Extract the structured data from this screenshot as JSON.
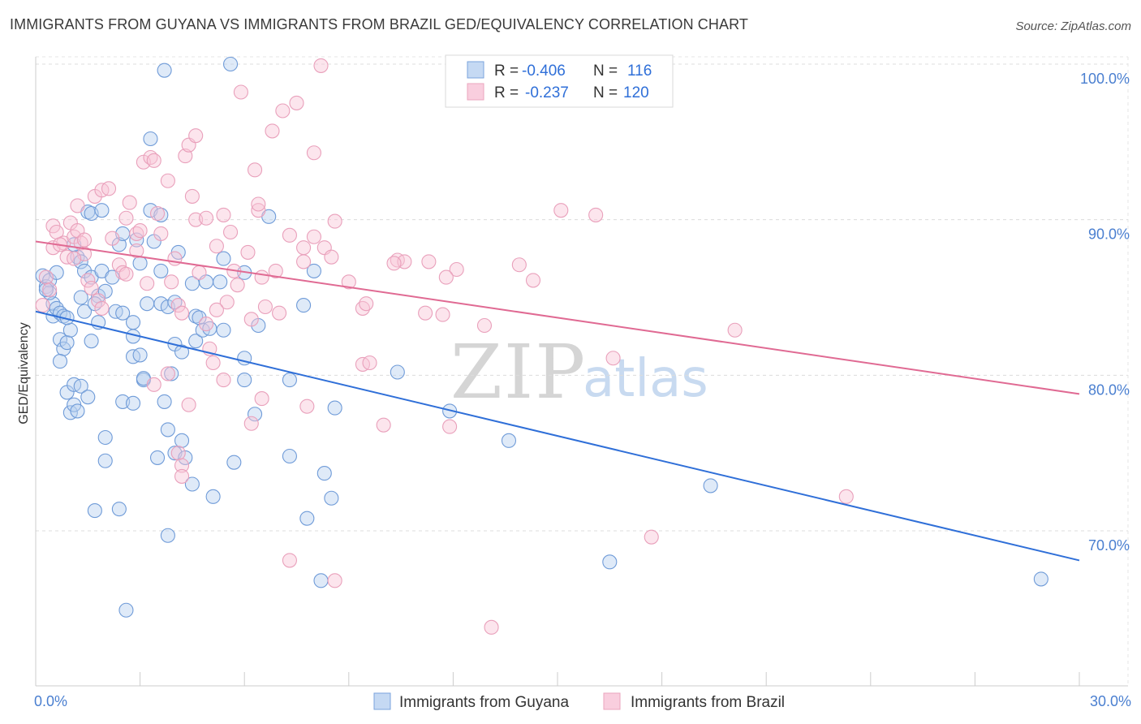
{
  "title": "IMMIGRANTS FROM GUYANA VS IMMIGRANTS FROM BRAZIL GED/EQUIVALENCY CORRELATION CHART",
  "source": "Source: ZipAtlas.com",
  "watermark": {
    "zip": "ZIP",
    "atlas": "atlas"
  },
  "colors": {
    "blue": "#4a7fd0",
    "blue_line": "#2f6fd8",
    "pink": "#e7709a",
    "pink_line": "#e06a93"
  },
  "chart_data": {
    "type": "scatter",
    "title": "IMMIGRANTS FROM GUYANA VS IMMIGRANTS FROM BRAZIL GED/EQUIVALENCY CORRELATION CHART",
    "xlabel": "",
    "ylabel": "GED/Equivalency",
    "xlim": [
      0,
      30
    ],
    "ylim": [
      60,
      101.5
    ],
    "x_tick_labels": [
      {
        "value": 0,
        "label": "0.0%"
      },
      {
        "value": 30,
        "label": "30.0%"
      }
    ],
    "x_minor_ticks": [
      3,
      6,
      9,
      12,
      15,
      18,
      21,
      24,
      27
    ],
    "y_ticks": [
      {
        "value": 70,
        "label": "70.0%"
      },
      {
        "value": 80,
        "label": "80.0%"
      },
      {
        "value": 90,
        "label": "90.0%"
      },
      {
        "value": 100,
        "label": "100.0%"
      }
    ],
    "legend": {
      "entries": [
        {
          "name": "blue",
          "r_label": "R =",
          "r_value": "-0.406",
          "n_label": "N =",
          "n_value": "116"
        },
        {
          "name": "pink",
          "r_label": "R =",
          "r_value": "-0.237",
          "n_label": "N =",
          "n_value": "120"
        }
      ]
    },
    "series": [
      {
        "name": "Immigrants from Guyana",
        "color": "blue",
        "trend": {
          "x": [
            0,
            30
          ],
          "y": [
            84.1,
            68.1
          ]
        },
        "points": [
          [
            0.2,
            86.4
          ],
          [
            0.3,
            85.7
          ],
          [
            0.4,
            86.1
          ],
          [
            0.5,
            84.6
          ],
          [
            0.6,
            86.6
          ],
          [
            0.4,
            85.3
          ],
          [
            0.5,
            83.8
          ],
          [
            0.6,
            84.3
          ],
          [
            0.7,
            84.0
          ],
          [
            0.8,
            83.8
          ],
          [
            0.7,
            82.3
          ],
          [
            0.8,
            81.7
          ],
          [
            0.9,
            82.1
          ],
          [
            0.7,
            80.9
          ],
          [
            1.0,
            82.9
          ],
          [
            0.9,
            78.9
          ],
          [
            1.0,
            77.6
          ],
          [
            1.1,
            78.1
          ],
          [
            1.2,
            77.7
          ],
          [
            1.1,
            79.4
          ],
          [
            1.3,
            79.3
          ],
          [
            1.5,
            78.6
          ],
          [
            0.9,
            83.7
          ],
          [
            1.4,
            84.1
          ],
          [
            1.8,
            83.4
          ],
          [
            1.6,
            82.2
          ],
          [
            1.2,
            87.6
          ],
          [
            1.3,
            87.3
          ],
          [
            1.4,
            86.7
          ],
          [
            1.6,
            86.3
          ],
          [
            1.8,
            85.1
          ],
          [
            1.9,
            86.7
          ],
          [
            2.0,
            85.4
          ],
          [
            1.5,
            90.5
          ],
          [
            1.6,
            90.4
          ],
          [
            1.9,
            90.6
          ],
          [
            2.2,
            86.3
          ],
          [
            2.3,
            84.1
          ],
          [
            2.5,
            84.0
          ],
          [
            2.4,
            88.4
          ],
          [
            2.5,
            89.1
          ],
          [
            2.8,
            82.5
          ],
          [
            2.8,
            81.2
          ],
          [
            3.0,
            81.3
          ],
          [
            3.1,
            79.7
          ],
          [
            3.1,
            79.8
          ],
          [
            2.5,
            78.3
          ],
          [
            2.8,
            78.2
          ],
          [
            2.0,
            76.0
          ],
          [
            2.0,
            74.5
          ],
          [
            1.7,
            71.3
          ],
          [
            2.4,
            71.4
          ],
          [
            2.6,
            64.9
          ],
          [
            3.2,
            84.6
          ],
          [
            3.0,
            87.2
          ],
          [
            3.3,
            90.6
          ],
          [
            3.6,
            90.3
          ],
          [
            3.4,
            88.6
          ],
          [
            3.6,
            86.7
          ],
          [
            3.6,
            84.6
          ],
          [
            3.8,
            84.4
          ],
          [
            4.0,
            84.7
          ],
          [
            4.0,
            82.0
          ],
          [
            4.2,
            81.5
          ],
          [
            3.9,
            80.1
          ],
          [
            3.7,
            78.3
          ],
          [
            3.8,
            76.5
          ],
          [
            4.2,
            75.8
          ],
          [
            3.5,
            74.7
          ],
          [
            4.0,
            75.0
          ],
          [
            4.3,
            74.7
          ],
          [
            4.5,
            73.0
          ],
          [
            3.8,
            69.7
          ],
          [
            4.1,
            87.9
          ],
          [
            4.5,
            85.9
          ],
          [
            4.6,
            83.8
          ],
          [
            4.7,
            83.7
          ],
          [
            4.6,
            82.2
          ],
          [
            4.8,
            82.9
          ],
          [
            4.9,
            86.0
          ],
          [
            5.0,
            83.0
          ],
          [
            5.1,
            72.2
          ],
          [
            5.3,
            86.0
          ],
          [
            5.4,
            87.5
          ],
          [
            5.4,
            82.9
          ],
          [
            5.7,
            74.4
          ],
          [
            6.0,
            86.6
          ],
          [
            6.0,
            81.1
          ],
          [
            6.0,
            79.7
          ],
          [
            6.3,
            77.5
          ],
          [
            6.4,
            83.2
          ],
          [
            6.7,
            90.2
          ],
          [
            7.3,
            79.7
          ],
          [
            7.3,
            74.8
          ],
          [
            7.7,
            84.5
          ],
          [
            7.8,
            70.8
          ],
          [
            8.0,
            86.7
          ],
          [
            8.3,
            73.7
          ],
          [
            8.2,
            66.8
          ],
          [
            8.5,
            72.1
          ],
          [
            8.6,
            77.9
          ],
          [
            10.4,
            80.2
          ],
          [
            11.9,
            77.7
          ],
          [
            13.6,
            75.8
          ],
          [
            16.5,
            68.0
          ],
          [
            19.4,
            72.9
          ],
          [
            28.9,
            66.9
          ],
          [
            5.6,
            100.0
          ],
          [
            3.7,
            99.6
          ],
          [
            3.3,
            95.2
          ],
          [
            1.7,
            84.6
          ],
          [
            2.8,
            83.4
          ],
          [
            1.3,
            85.0
          ],
          [
            0.3,
            85.5
          ],
          [
            1.1,
            88.4
          ],
          [
            2.9,
            88.7
          ]
        ]
      },
      {
        "name": "Immigrants from Brazil",
        "color": "pink",
        "trend": {
          "x": [
            0,
            30
          ],
          "y": [
            88.6,
            78.8
          ]
        },
        "points": [
          [
            0.2,
            84.5
          ],
          [
            0.3,
            86.3
          ],
          [
            0.5,
            88.2
          ],
          [
            0.5,
            89.6
          ],
          [
            0.6,
            89.2
          ],
          [
            0.8,
            88.5
          ],
          [
            0.9,
            87.6
          ],
          [
            1.0,
            89.8
          ],
          [
            1.1,
            88.9
          ],
          [
            1.2,
            89.3
          ],
          [
            1.2,
            90.9
          ],
          [
            1.3,
            88.5
          ],
          [
            1.4,
            87.8
          ],
          [
            1.5,
            86.1
          ],
          [
            1.6,
            85.6
          ],
          [
            1.8,
            84.8
          ],
          [
            1.9,
            84.3
          ],
          [
            1.7,
            91.5
          ],
          [
            1.9,
            91.9
          ],
          [
            2.1,
            92.0
          ],
          [
            2.2,
            88.8
          ],
          [
            2.4,
            87.1
          ],
          [
            2.5,
            86.6
          ],
          [
            2.6,
            90.1
          ],
          [
            2.7,
            91.1
          ],
          [
            2.9,
            89.1
          ],
          [
            3.0,
            89.3
          ],
          [
            3.1,
            93.7
          ],
          [
            3.3,
            94.0
          ],
          [
            3.4,
            93.8
          ],
          [
            3.5,
            90.4
          ],
          [
            3.6,
            89.1
          ],
          [
            3.8,
            92.5
          ],
          [
            3.9,
            86.0
          ],
          [
            4.0,
            87.5
          ],
          [
            4.1,
            84.5
          ],
          [
            4.2,
            84.0
          ],
          [
            4.3,
            94.1
          ],
          [
            4.4,
            94.8
          ],
          [
            4.5,
            91.5
          ],
          [
            4.6,
            90.0
          ],
          [
            4.7,
            86.6
          ],
          [
            4.9,
            83.3
          ],
          [
            5.0,
            81.7
          ],
          [
            5.1,
            80.8
          ],
          [
            5.2,
            88.3
          ],
          [
            5.4,
            90.3
          ],
          [
            5.6,
            89.2
          ],
          [
            5.7,
            86.7
          ],
          [
            5.8,
            85.8
          ],
          [
            5.9,
            98.2
          ],
          [
            6.1,
            87.9
          ],
          [
            6.2,
            83.6
          ],
          [
            6.3,
            93.2
          ],
          [
            6.4,
            90.6
          ],
          [
            6.5,
            86.3
          ],
          [
            6.6,
            84.4
          ],
          [
            6.8,
            95.7
          ],
          [
            6.9,
            86.7
          ],
          [
            7.0,
            84.0
          ],
          [
            7.1,
            97.0
          ],
          [
            7.3,
            89.0
          ],
          [
            7.5,
            97.5
          ],
          [
            7.7,
            88.2
          ],
          [
            7.8,
            78.0
          ],
          [
            8.0,
            94.3
          ],
          [
            8.3,
            88.2
          ],
          [
            8.6,
            89.9
          ],
          [
            9.0,
            86.0
          ],
          [
            9.4,
            84.3
          ],
          [
            9.4,
            80.7
          ],
          [
            9.6,
            80.8
          ],
          [
            10.0,
            76.8
          ],
          [
            10.4,
            87.4
          ],
          [
            10.6,
            87.3
          ],
          [
            11.3,
            87.3
          ],
          [
            11.7,
            83.9
          ],
          [
            11.9,
            76.7
          ],
          [
            12.1,
            86.8
          ],
          [
            12.9,
            83.2
          ],
          [
            13.9,
            87.1
          ],
          [
            14.3,
            86.1
          ],
          [
            15.1,
            90.6
          ],
          [
            16.1,
            90.3
          ],
          [
            16.6,
            81.1
          ],
          [
            17.7,
            69.6
          ],
          [
            20.1,
            82.9
          ],
          [
            23.3,
            72.2
          ],
          [
            8.6,
            66.8
          ],
          [
            7.3,
            68.1
          ],
          [
            13.1,
            63.8
          ],
          [
            8.2,
            99.9
          ],
          [
            10.3,
            87.2
          ],
          [
            11.8,
            86.3
          ],
          [
            8.5,
            87.6
          ],
          [
            7.7,
            87.3
          ],
          [
            4.9,
            90.1
          ],
          [
            3.4,
            79.4
          ],
          [
            3.8,
            80.1
          ],
          [
            4.4,
            78.1
          ],
          [
            4.1,
            75.0
          ],
          [
            4.2,
            74.2
          ],
          [
            4.2,
            73.5
          ],
          [
            5.4,
            79.7
          ],
          [
            6.2,
            76.9
          ],
          [
            6.5,
            78.5
          ],
          [
            5.5,
            84.7
          ],
          [
            0.4,
            85.5
          ],
          [
            0.7,
            88.4
          ],
          [
            1.1,
            87.5
          ],
          [
            1.4,
            88.7
          ],
          [
            2.6,
            86.5
          ],
          [
            2.9,
            88.0
          ],
          [
            3.2,
            85.9
          ],
          [
            4.6,
            95.4
          ],
          [
            6.4,
            91.0
          ],
          [
            8.0,
            88.9
          ],
          [
            5.2,
            84.2
          ],
          [
            9.5,
            84.6
          ],
          [
            11.2,
            84.0
          ]
        ]
      }
    ]
  },
  "bottom_legend": [
    {
      "label": "Immigrants from Guyana",
      "color": "blue"
    },
    {
      "label": "Immigrants from Brazil",
      "color": "pink"
    }
  ]
}
